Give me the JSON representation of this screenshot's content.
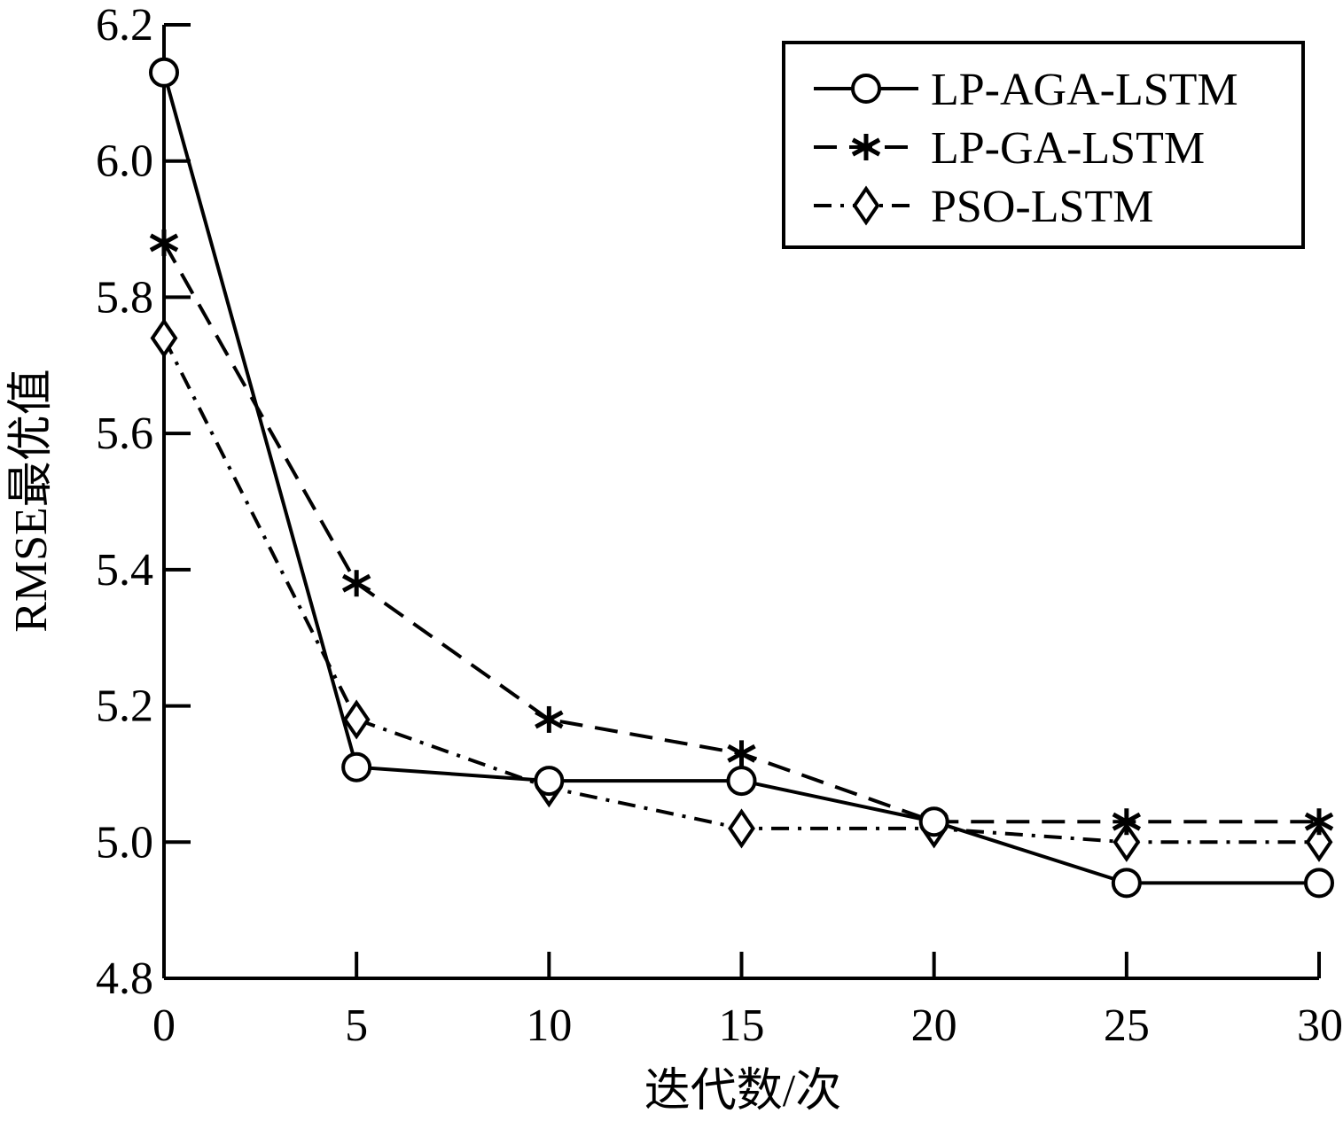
{
  "chart_data": {
    "type": "line",
    "xlabel": "迭代数/次",
    "ylabel": "RMSE最优值",
    "xlim": [
      0,
      30
    ],
    "ylim": [
      4.8,
      6.2
    ],
    "xticks": [
      0,
      5,
      10,
      15,
      20,
      25,
      30
    ],
    "yticks": [
      4.8,
      5.0,
      5.2,
      5.4,
      5.6,
      5.8,
      6.0,
      6.2
    ],
    "ytick_labels": [
      "4.8",
      "5.0",
      "5.2",
      "5.4",
      "5.6",
      "5.8",
      "6.0",
      "6.2"
    ],
    "grid": false,
    "legend_position": "top-right",
    "x": [
      0,
      5,
      10,
      15,
      20,
      25,
      30
    ],
    "series": [
      {
        "name": "LP-AGA-LSTM",
        "marker": "circle",
        "line_style": "solid",
        "values": [
          6.13,
          5.11,
          5.09,
          5.09,
          5.03,
          4.94,
          4.94
        ]
      },
      {
        "name": "LP-GA-LSTM",
        "marker": "asterisk",
        "line_style": "dashed",
        "values": [
          5.88,
          5.38,
          5.18,
          5.13,
          5.03,
          5.03,
          5.03
        ]
      },
      {
        "name": "PSO-LSTM",
        "marker": "diamond",
        "line_style": "dash-dot",
        "values": [
          5.74,
          5.18,
          5.08,
          5.02,
          5.02,
          5.0,
          5.0
        ]
      }
    ],
    "color": "#000000"
  }
}
